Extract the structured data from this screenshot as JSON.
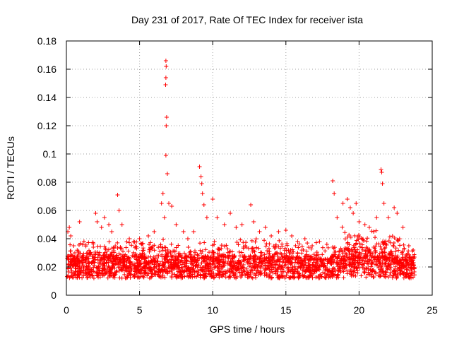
{
  "chart_data": {
    "type": "scatter",
    "title": "Day 231 of 2017, Rate Of TEC Index for receiver ista",
    "xlabel": "GPS time / hours",
    "ylabel": "ROTI / TECUs",
    "xlim": [
      0,
      25
    ],
    "ylim": [
      0,
      0.18
    ],
    "xticks": [
      0,
      5,
      10,
      15,
      20,
      25
    ],
    "xtick_labels": [
      "0",
      "5",
      "10",
      "15",
      "20",
      "25"
    ],
    "yticks": [
      0,
      0.02,
      0.04,
      0.06,
      0.08,
      0.1,
      0.12,
      0.14,
      0.16,
      0.18
    ],
    "ytick_labels": [
      "0",
      "0.02",
      "0.04",
      "0.06",
      "0.08",
      "0.1",
      "0.12",
      "0.14",
      "0.16",
      "0.18"
    ],
    "grid": true,
    "marker": "+",
    "color": "#ff0000",
    "series": [
      {
        "name": "ROTI",
        "points": [
          [
            0.1,
            0.045
          ],
          [
            0.2,
            0.048
          ],
          [
            0.3,
            0.042
          ],
          [
            0.5,
            0.035
          ],
          [
            0.9,
            0.052
          ],
          [
            1.2,
            0.038
          ],
          [
            1.6,
            0.03
          ],
          [
            2.0,
            0.058
          ],
          [
            2.1,
            0.052
          ],
          [
            2.4,
            0.048
          ],
          [
            2.6,
            0.055
          ],
          [
            2.9,
            0.05
          ],
          [
            3.1,
            0.045
          ],
          [
            3.5,
            0.071
          ],
          [
            3.6,
            0.06
          ],
          [
            3.8,
            0.05
          ],
          [
            4.3,
            0.04
          ],
          [
            4.6,
            0.038
          ],
          [
            5.0,
            0.04
          ],
          [
            5.6,
            0.042
          ],
          [
            6.0,
            0.045
          ],
          [
            6.5,
            0.065
          ],
          [
            6.6,
            0.072
          ],
          [
            6.7,
            0.055
          ],
          [
            6.8,
            0.166
          ],
          [
            6.82,
            0.162
          ],
          [
            6.8,
            0.154
          ],
          [
            6.78,
            0.149
          ],
          [
            6.85,
            0.126
          ],
          [
            6.82,
            0.12
          ],
          [
            6.8,
            0.099
          ],
          [
            6.9,
            0.086
          ],
          [
            7.0,
            0.065
          ],
          [
            7.2,
            0.063
          ],
          [
            7.5,
            0.05
          ],
          [
            8.0,
            0.045
          ],
          [
            8.3,
            0.04
          ],
          [
            8.7,
            0.045
          ],
          [
            9.1,
            0.091
          ],
          [
            9.2,
            0.084
          ],
          [
            9.25,
            0.079
          ],
          [
            9.3,
            0.072
          ],
          [
            9.4,
            0.064
          ],
          [
            9.6,
            0.055
          ],
          [
            10.0,
            0.068
          ],
          [
            10.3,
            0.055
          ],
          [
            10.8,
            0.05
          ],
          [
            11.2,
            0.058
          ],
          [
            11.6,
            0.048
          ],
          [
            12.0,
            0.05
          ],
          [
            12.6,
            0.064
          ],
          [
            12.8,
            0.052
          ],
          [
            13.2,
            0.045
          ],
          [
            13.6,
            0.048
          ],
          [
            14.0,
            0.042
          ],
          [
            14.5,
            0.045
          ],
          [
            15.0,
            0.046
          ],
          [
            15.4,
            0.042
          ],
          [
            15.8,
            0.038
          ],
          [
            16.3,
            0.04
          ],
          [
            16.8,
            0.035
          ],
          [
            17.3,
            0.038
          ],
          [
            17.8,
            0.036
          ],
          [
            18.2,
            0.081
          ],
          [
            18.3,
            0.072
          ],
          [
            18.5,
            0.055
          ],
          [
            18.9,
            0.065
          ],
          [
            19.2,
            0.068
          ],
          [
            19.4,
            0.062
          ],
          [
            19.6,
            0.058
          ],
          [
            19.8,
            0.065
          ],
          [
            20.0,
            0.052
          ],
          [
            20.4,
            0.05
          ],
          [
            20.7,
            0.048
          ],
          [
            21.0,
            0.045
          ],
          [
            21.2,
            0.055
          ],
          [
            21.5,
            0.089
          ],
          [
            21.55,
            0.087
          ],
          [
            21.6,
            0.079
          ],
          [
            21.7,
            0.065
          ],
          [
            22.0,
            0.055
          ],
          [
            22.4,
            0.062
          ],
          [
            22.6,
            0.058
          ],
          [
            23.0,
            0.048
          ],
          [
            23.4,
            0.035
          ],
          [
            23.7,
            0.032
          ]
        ]
      }
    ]
  }
}
